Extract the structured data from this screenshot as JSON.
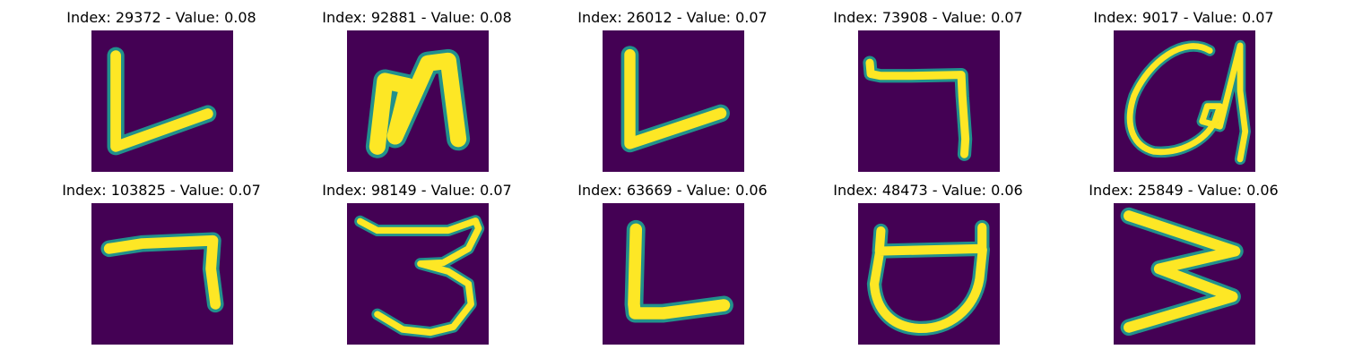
{
  "colors": {
    "background": "#440154",
    "glyph": "#fde725",
    "edge": "#21918c"
  },
  "panels": [
    {
      "title": "Index: 29372 - Value: 0.08",
      "glyph": "L-shape"
    },
    {
      "title": "Index: 92881 - Value: 0.08",
      "glyph": "N-shape"
    },
    {
      "title": "Index: 26012 - Value: 0.07",
      "glyph": "L-shape"
    },
    {
      "title": "Index: 73908 - Value: 0.07",
      "glyph": "7-shape"
    },
    {
      "title": "Index: 9017 - Value: 0.07",
      "glyph": "Q-loop"
    },
    {
      "title": "Index: 103825 - Value: 0.07",
      "glyph": "7-shape"
    },
    {
      "title": "Index: 98149 - Value: 0.07",
      "glyph": "3-shape"
    },
    {
      "title": "Index: 63669 - Value: 0.06",
      "glyph": "L-shape"
    },
    {
      "title": "Index: 48473 - Value: 0.06",
      "glyph": "U-shape"
    },
    {
      "title": "Index: 25849 - Value: 0.06",
      "glyph": "Z-shape"
    }
  ]
}
